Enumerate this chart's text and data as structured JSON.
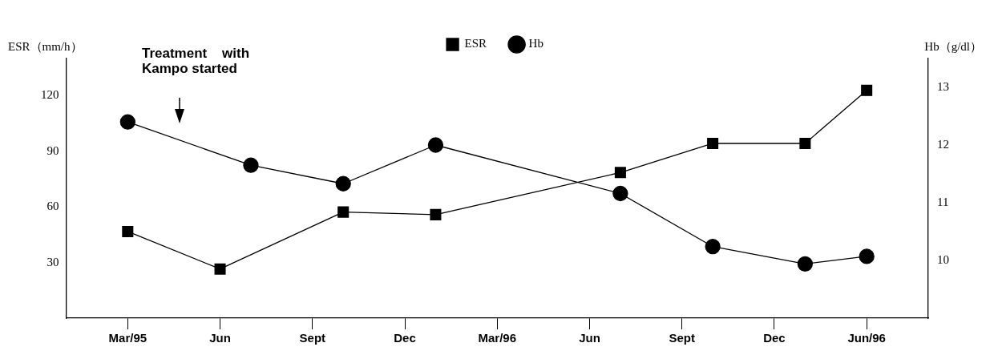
{
  "chart_data": {
    "type": "line",
    "ylabel": "ESR（mm/h）",
    "y2label": "Hb（g/dl）",
    "categories": [
      null,
      null,
      "Mar/95",
      null,
      null,
      "Jun",
      null,
      null,
      "Sept",
      null,
      null,
      "Dec",
      null,
      null,
      "Mar/96",
      null,
      null,
      "Jun",
      null,
      null,
      "Sept",
      null,
      null,
      "Dec",
      null,
      null,
      "Jun/96",
      null,
      null
    ],
    "ylim": [
      0,
      140
    ],
    "yticks": [
      30,
      60,
      90,
      120
    ],
    "y2lim": [
      9,
      13.5
    ],
    "y2ticks": [
      10,
      11,
      12,
      13
    ],
    "series": [
      {
        "name": "ESR",
        "color": "#000000",
        "marker": "square",
        "values": [
          null,
          null,
          46.7,
          null,
          null,
          26.5,
          null,
          null,
          null,
          57.2,
          null,
          null,
          55.8,
          null,
          null,
          null,
          null,
          null,
          78.5,
          null,
          null,
          94.2,
          null,
          null,
          94.2,
          null,
          122.8,
          null,
          null
        ]
      },
      {
        "name": "Hb",
        "color": "#000000",
        "marker": "circle",
        "axis": "y2",
        "values": [
          null,
          null,
          12.4,
          null,
          null,
          null,
          11.65,
          null,
          null,
          11.33,
          null,
          null,
          12.0,
          null,
          null,
          null,
          null,
          null,
          11.16,
          null,
          null,
          10.24,
          null,
          null,
          9.94,
          null,
          10.07,
          null,
          null
        ]
      }
    ],
    "annotations": [
      "Treatment    with\nKampo started"
    ],
    "grid": false,
    "legend": "top",
    "line_style": "solid"
  }
}
